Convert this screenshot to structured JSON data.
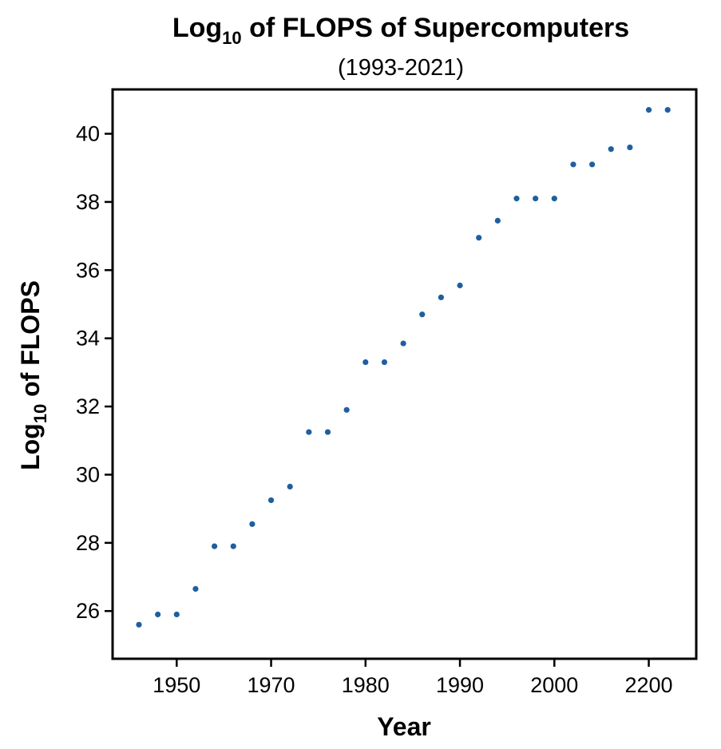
{
  "chart_data": {
    "type": "scatter",
    "title_main": "Log",
    "title_sub": "10",
    "title_rest": " of FLOPS of Supercomputers",
    "subtitle": "(1993-2021)",
    "xlabel": "Year",
    "ylabel_main": "Log",
    "ylabel_sub": "10",
    "ylabel_rest": " of FLOPS",
    "x_tick_labels": [
      "1950",
      "1970",
      "1980",
      "1990",
      "2000",
      "2200"
    ],
    "y_ticks": [
      26,
      28,
      30,
      32,
      34,
      36,
      38,
      40
    ],
    "y_tick_labels": [
      "26",
      "28",
      "30",
      "32",
      "34",
      "36",
      "38",
      "40"
    ],
    "ylim": [
      24.6,
      41.3
    ],
    "grid": false,
    "legend": "none",
    "point_color": "#1f5f9e",
    "points": [
      {
        "x": 0,
        "y": 25.6
      },
      {
        "x": 1,
        "y": 25.9
      },
      {
        "x": 2,
        "y": 25.9
      },
      {
        "x": 3,
        "y": 26.65
      },
      {
        "x": 4,
        "y": 27.9
      },
      {
        "x": 5,
        "y": 27.9
      },
      {
        "x": 6,
        "y": 28.55
      },
      {
        "x": 7,
        "y": 29.25
      },
      {
        "x": 8,
        "y": 29.65
      },
      {
        "x": 9,
        "y": 31.25
      },
      {
        "x": 10,
        "y": 31.25
      },
      {
        "x": 11,
        "y": 31.9
      },
      {
        "x": 12,
        "y": 33.3
      },
      {
        "x": 13,
        "y": 33.3
      },
      {
        "x": 14,
        "y": 33.85
      },
      {
        "x": 15,
        "y": 34.7
      },
      {
        "x": 16,
        "y": 35.2
      },
      {
        "x": 17,
        "y": 35.55
      },
      {
        "x": 18,
        "y": 36.95
      },
      {
        "x": 19,
        "y": 37.45
      },
      {
        "x": 20,
        "y": 38.1
      },
      {
        "x": 21,
        "y": 38.1
      },
      {
        "x": 22,
        "y": 38.1
      },
      {
        "x": 23,
        "y": 39.1
      },
      {
        "x": 24,
        "y": 39.1
      },
      {
        "x": 25,
        "y": 39.55
      },
      {
        "x": 26,
        "y": 39.6
      },
      {
        "x": 27,
        "y": 40.7
      },
      {
        "x": 28,
        "y": 40.7
      }
    ]
  }
}
